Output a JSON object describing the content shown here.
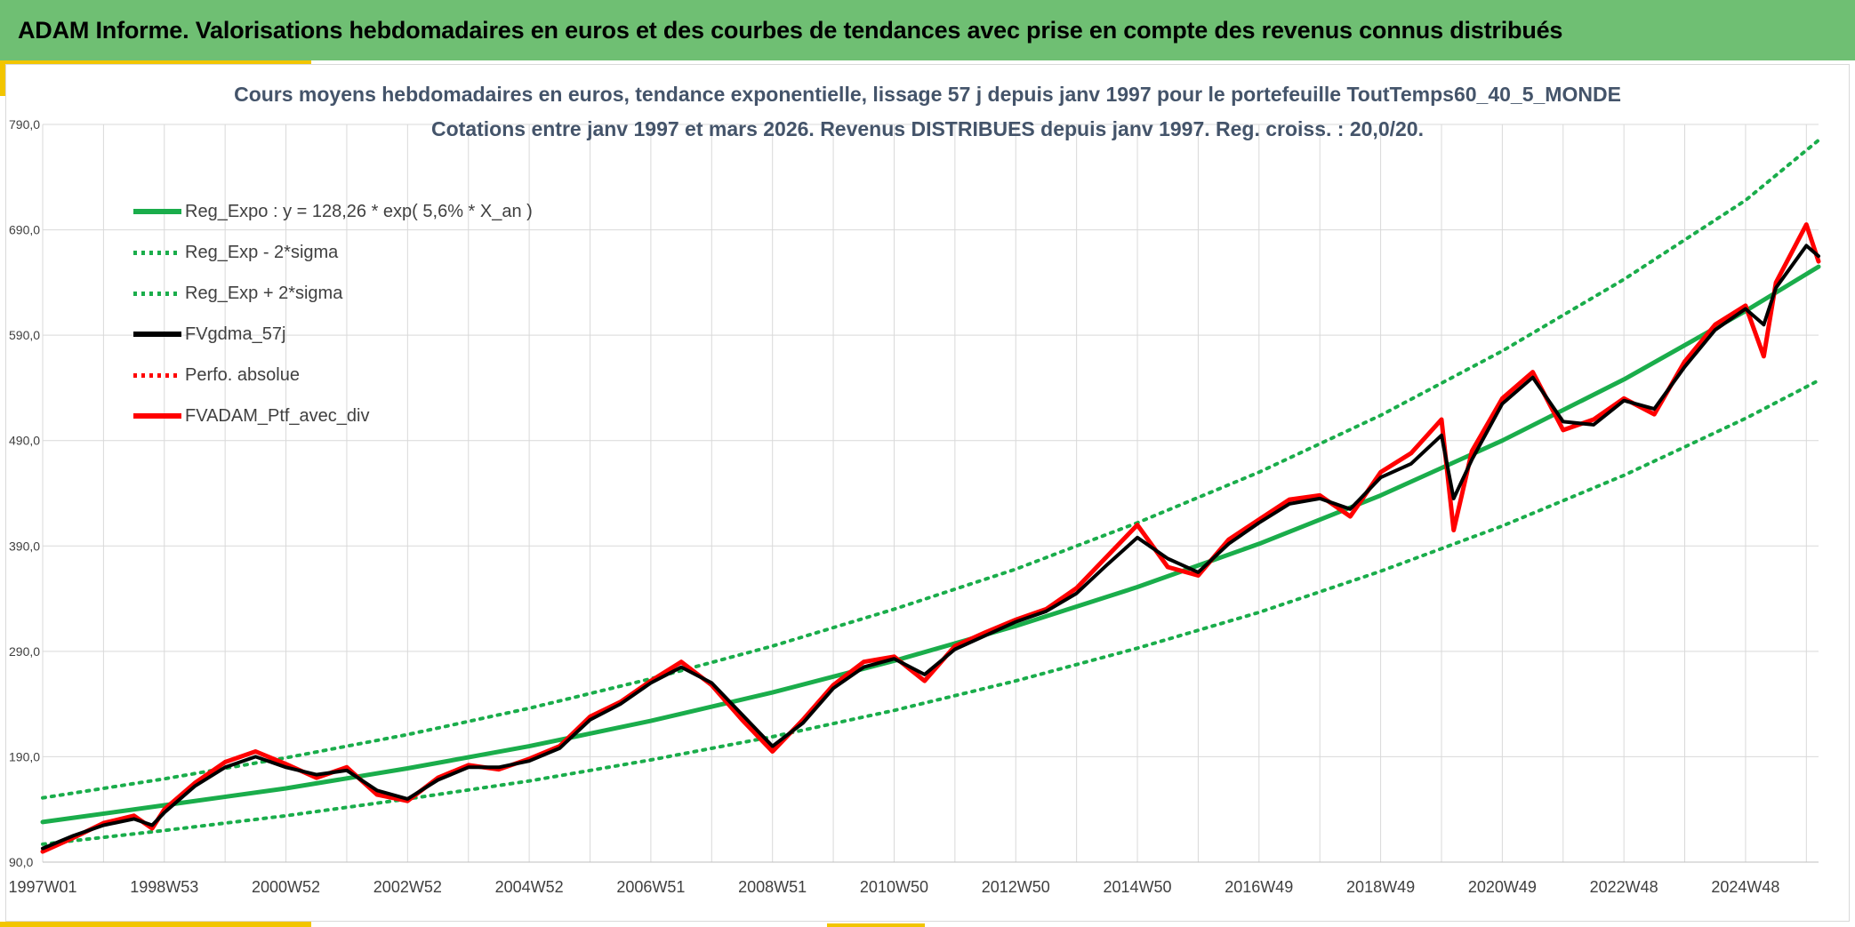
{
  "header": {
    "title": "ADAM Informe. Valorisations hebdomadaires en euros et des courbes de tendances avec prise en compte des revenus connus distribués"
  },
  "colors": {
    "header_bg": "#6fbf73",
    "accent": "#f2c500",
    "reg_line": "#1aad4b",
    "price_line": "#ff0000",
    "avg_line": "#000000",
    "grid": "#d9d9d9",
    "title_text": "#44546a"
  },
  "chart_data": {
    "type": "line",
    "title_line1": "Cours moyens hebdomadaires en euros, tendance exponentielle, lissage 57 j depuis janv 1997 pour le portefeuille ToutTemps60_40_5_MONDE",
    "title_line2": "Cotations entre janv 1997 et mars 2026. Revenus DISTRIBUES depuis janv 1997. Reg. croiss. : 20,0/20.",
    "xlabel": "",
    "ylabel": "",
    "ylim": [
      90,
      790
    ],
    "xlim": [
      1997.0,
      2026.2
    ],
    "grid": true,
    "legend_position": "top-left",
    "y_ticks": [
      "90,0",
      "190,0",
      "290,0",
      "390,0",
      "490,0",
      "590,0",
      "690,0",
      "790,0"
    ],
    "x_ticks": [
      {
        "label": "1997W01",
        "x": 1997.0
      },
      {
        "label": "1998W53",
        "x": 1999.0
      },
      {
        "label": "2000W52",
        "x": 2001.0
      },
      {
        "label": "2002W52",
        "x": 2003.0
      },
      {
        "label": "2004W52",
        "x": 2005.0
      },
      {
        "label": "2006W51",
        "x": 2007.0
      },
      {
        "label": "2008W51",
        "x": 2009.0
      },
      {
        "label": "2010W50",
        "x": 2011.0
      },
      {
        "label": "2012W50",
        "x": 2013.0
      },
      {
        "label": "2014W50",
        "x": 2015.0
      },
      {
        "label": "2016W49",
        "x": 2017.0
      },
      {
        "label": "2018W49",
        "x": 2019.0
      },
      {
        "label": "2020W49",
        "x": 2021.0
      },
      {
        "label": "2022W48",
        "x": 2023.0
      },
      {
        "label": "2024W48",
        "x": 2025.0
      }
    ],
    "legend": [
      {
        "label": "Reg_Expo : y = 128,26 * exp( 5,6% *  X_an )",
        "style": "solid",
        "color": "#1aad4b"
      },
      {
        "label": "Reg_Exp - 2*sigma",
        "style": "dotted",
        "color": "#1aad4b"
      },
      {
        "label": "Reg_Exp + 2*sigma",
        "style": "dotted",
        "color": "#1aad4b"
      },
      {
        "label": "FVgdma_57j",
        "style": "solid",
        "color": "#000000"
      },
      {
        "label": "Perfo. absolue",
        "style": "dotted",
        "color": "#ff0000"
      },
      {
        "label": "FVADAM_Ptf_avec_div",
        "style": "solid",
        "color": "#ff0000"
      }
    ],
    "series": [
      {
        "name": "Reg_Expo : y = 128,26 * exp( 5,6% *  X_an )",
        "x": [
          1997.0,
          1999.0,
          2001.0,
          2003.0,
          2005.0,
          2007.0,
          2009.0,
          2011.0,
          2013.0,
          2015.0,
          2017.0,
          2019.0,
          2021.0,
          2023.0,
          2025.0,
          2026.2
        ],
        "y": [
          128,
          144,
          160,
          179,
          200,
          224,
          251,
          281,
          314,
          351,
          392,
          438,
          490,
          548,
          613,
          655
        ]
      },
      {
        "name": "Reg_Exp - 2*sigma",
        "x": [
          1997.0,
          1999.0,
          2001.0,
          2003.0,
          2005.0,
          2007.0,
          2009.0,
          2011.0,
          2013.0,
          2015.0,
          2017.0,
          2019.0,
          2021.0,
          2023.0,
          2025.0,
          2026.2
        ],
        "y": [
          107,
          120,
          134,
          150,
          167,
          187,
          209,
          234,
          262,
          293,
          327,
          366,
          409,
          457,
          511,
          547
        ]
      },
      {
        "name": "Reg_Exp + 2*sigma",
        "x": [
          1997.0,
          1999.0,
          2001.0,
          2003.0,
          2005.0,
          2007.0,
          2009.0,
          2011.0,
          2013.0,
          2015.0,
          2017.0,
          2019.0,
          2021.0,
          2023.0,
          2025.0,
          2026.2
        ],
        "y": [
          151,
          169,
          189,
          211,
          236,
          264,
          295,
          330,
          368,
          412,
          460,
          514,
          575,
          643,
          718,
          775
        ]
      },
      {
        "name": "FVgdma_57j",
        "x": [
          1997.0,
          1997.5,
          1998.0,
          1998.5,
          1998.8,
          1999.0,
          1999.5,
          2000.0,
          2000.5,
          2001.0,
          2001.5,
          2002.0,
          2002.5,
          2003.0,
          2003.5,
          2004.0,
          2004.5,
          2005.0,
          2005.5,
          2006.0,
          2006.5,
          2007.0,
          2007.5,
          2008.0,
          2008.5,
          2009.0,
          2009.5,
          2010.0,
          2010.5,
          2011.0,
          2011.5,
          2012.0,
          2012.5,
          2013.0,
          2013.5,
          2014.0,
          2014.5,
          2015.0,
          2015.5,
          2016.0,
          2016.5,
          2017.0,
          2017.5,
          2018.0,
          2018.5,
          2019.0,
          2019.5,
          2020.0,
          2020.2,
          2020.5,
          2021.0,
          2021.5,
          2022.0,
          2022.5,
          2023.0,
          2023.5,
          2024.0,
          2024.5,
          2025.0,
          2025.3,
          2025.5,
          2026.0,
          2026.2
        ],
        "y": [
          103,
          115,
          125,
          131,
          125,
          137,
          162,
          180,
          190,
          180,
          173,
          177,
          158,
          150,
          168,
          180,
          180,
          186,
          198,
          225,
          240,
          260,
          275,
          260,
          230,
          200,
          222,
          255,
          275,
          283,
          268,
          292,
          305,
          318,
          328,
          345,
          372,
          398,
          378,
          365,
          392,
          412,
          430,
          435,
          425,
          455,
          468,
          495,
          435,
          472,
          525,
          550,
          508,
          505,
          528,
          520,
          560,
          595,
          615,
          600,
          635,
          675,
          665
        ]
      },
      {
        "name": "FVADAM_Ptf_avec_div",
        "x": [
          1997.0,
          1997.5,
          1998.0,
          1998.5,
          1998.8,
          1999.0,
          1999.5,
          2000.0,
          2000.5,
          2001.0,
          2001.5,
          2002.0,
          2002.5,
          2003.0,
          2003.5,
          2004.0,
          2004.5,
          2005.0,
          2005.5,
          2006.0,
          2006.5,
          2007.0,
          2007.5,
          2008.0,
          2008.5,
          2009.0,
          2009.5,
          2010.0,
          2010.5,
          2011.0,
          2011.5,
          2012.0,
          2012.5,
          2013.0,
          2013.5,
          2014.0,
          2014.5,
          2015.0,
          2015.5,
          2016.0,
          2016.5,
          2017.0,
          2017.5,
          2018.0,
          2018.5,
          2019.0,
          2019.5,
          2020.0,
          2020.2,
          2020.5,
          2021.0,
          2021.5,
          2022.0,
          2022.5,
          2023.0,
          2023.5,
          2024.0,
          2024.5,
          2025.0,
          2025.3,
          2025.5,
          2026.0,
          2026.2
        ],
        "y": [
          100,
          113,
          127,
          134,
          122,
          140,
          165,
          185,
          195,
          183,
          170,
          180,
          154,
          148,
          170,
          182,
          178,
          188,
          200,
          228,
          242,
          262,
          280,
          258,
          225,
          195,
          225,
          258,
          280,
          285,
          262,
          295,
          308,
          320,
          330,
          350,
          380,
          410,
          370,
          362,
          396,
          415,
          434,
          438,
          418,
          460,
          478,
          510,
          405,
          480,
          530,
          555,
          500,
          510,
          530,
          515,
          565,
          600,
          618,
          570,
          640,
          695,
          660
        ]
      }
    ]
  }
}
